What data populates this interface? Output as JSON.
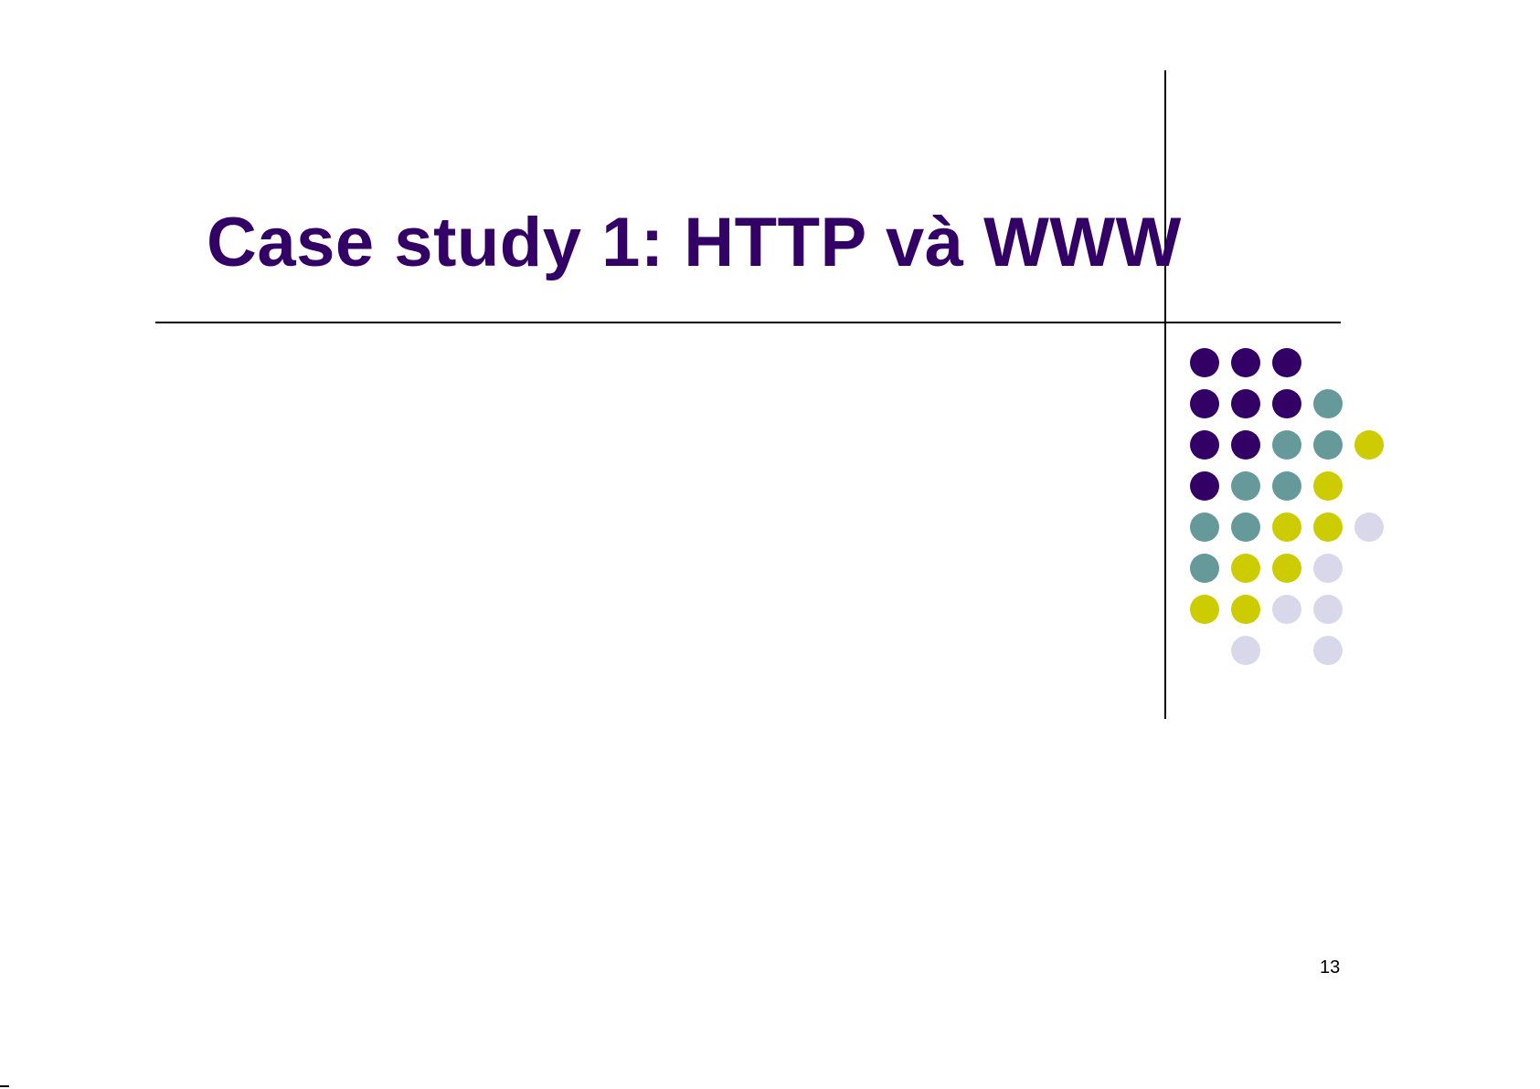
{
  "slide": {
    "title": "Case study 1: HTTP và WWW",
    "page_number": "13"
  },
  "decoration": {
    "colors": {
      "purple": "#330066",
      "teal": "#669999",
      "yellow": "#cccc00",
      "lavender": "#d8d8ea"
    },
    "dot_grid": [
      [
        "purple",
        "purple",
        "purple",
        null,
        null
      ],
      [
        "purple",
        "purple",
        "purple",
        "teal",
        null
      ],
      [
        "purple",
        "purple",
        "teal",
        "teal",
        "yellow"
      ],
      [
        "purple",
        "teal",
        "teal",
        "yellow",
        null
      ],
      [
        "teal",
        "teal",
        "yellow",
        "yellow",
        "lavender"
      ],
      [
        "teal",
        "yellow",
        "yellow",
        "lavender",
        null
      ],
      [
        "yellow",
        "yellow",
        "lavender",
        "lavender",
        null
      ],
      [
        null,
        "lavender",
        null,
        "lavender",
        null
      ]
    ]
  }
}
